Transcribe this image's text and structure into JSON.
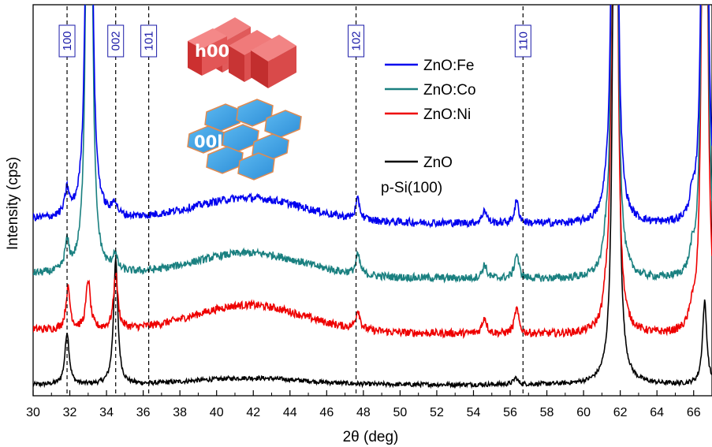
{
  "chart_data": {
    "type": "line",
    "xlabel": "2θ (deg)",
    "ylabel": "Intensity (cps)",
    "xlim": [
      30,
      67
    ],
    "x_ticks": [
      "30",
      "32",
      "34",
      "36",
      "38",
      "40",
      "42",
      "44",
      "46",
      "48",
      "50",
      "52",
      "54",
      "56",
      "58",
      "60",
      "62",
      "64",
      "66"
    ],
    "y_ticks_shown": false,
    "peak_markers": [
      {
        "label": "100",
        "x": 31.85
      },
      {
        "label": "002",
        "x": 34.5
      },
      {
        "label": "101",
        "x": 36.3
      },
      {
        "label": "102",
        "x": 47.6
      },
      {
        "label": "110",
        "x": 56.7
      }
    ],
    "substrate_label": "p-Si(100)",
    "inset_labels": [
      "h00",
      "00l"
    ],
    "series": [
      {
        "name": "ZnO:Fe",
        "color": "#0000ee",
        "baseline": 3.0,
        "peaks": [
          [
            31.85,
            0.45
          ],
          [
            33.05,
            30
          ],
          [
            34.45,
            0.25
          ],
          [
            47.7,
            0.35
          ],
          [
            54.6,
            0.25
          ],
          [
            56.35,
            0.4
          ],
          [
            61.2,
            0.2
          ],
          [
            61.7,
            30
          ],
          [
            65.9,
            0.3
          ],
          [
            66.6,
            30
          ]
        ],
        "hump": 0.42
      },
      {
        "name": "ZnO:Co",
        "color": "#1a8080",
        "baseline": 2.0,
        "peaks": [
          [
            31.85,
            0.5
          ],
          [
            33.05,
            30
          ],
          [
            34.45,
            0.3
          ],
          [
            47.7,
            0.35
          ],
          [
            54.6,
            0.25
          ],
          [
            56.35,
            0.45
          ],
          [
            61.2,
            0.25
          ],
          [
            61.7,
            30
          ],
          [
            65.9,
            0.3
          ],
          [
            66.6,
            30
          ]
        ],
        "hump": 0.42
      },
      {
        "name": "ZnO:Ni",
        "color": "#ee0000",
        "baseline": 1.0,
        "peaks": [
          [
            31.9,
            0.75
          ],
          [
            33.0,
            0.9
          ],
          [
            34.5,
            1.0
          ],
          [
            47.7,
            0.35
          ],
          [
            54.6,
            0.3
          ],
          [
            56.35,
            0.45
          ],
          [
            61.2,
            0.3
          ],
          [
            61.7,
            30
          ],
          [
            65.9,
            0.3
          ],
          [
            66.6,
            30
          ]
        ],
        "hump": 0.48
      },
      {
        "name": "ZnO",
        "color": "#000000",
        "baseline": 0.0,
        "peaks": [
          [
            31.85,
            0.95
          ],
          [
            34.5,
            2.25
          ],
          [
            56.3,
            0.12
          ],
          [
            61.75,
            30
          ],
          [
            66.6,
            1.5
          ]
        ],
        "hump": 0.12
      }
    ]
  }
}
